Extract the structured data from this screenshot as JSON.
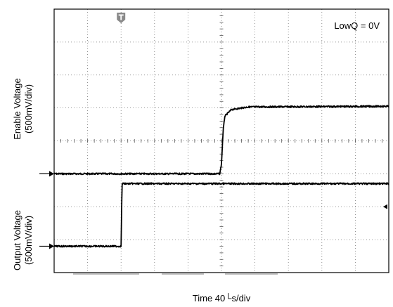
{
  "chart_data": {
    "type": "line",
    "annotation": "LowQ = 0V",
    "xlabel": "Time 40└s/div",
    "x_divisions": 10,
    "y_divisions": 8,
    "series": [
      {
        "name": "Enable Voltage",
        "label_lines": [
          "Enable Voltage",
          "(500mV/div)"
        ],
        "ground_div": 3,
        "points": [
          [
            0,
            3.0
          ],
          [
            4.95,
            3.0
          ],
          [
            5.0,
            3.3
          ],
          [
            5.05,
            4.3
          ],
          [
            5.1,
            4.75
          ],
          [
            5.3,
            4.95
          ],
          [
            5.8,
            5.03
          ],
          [
            10,
            5.05
          ]
        ]
      },
      {
        "name": "Output Voltage",
        "label_lines": [
          "Output Voltage",
          "(500mV/div)"
        ],
        "ground_div": 0.8,
        "points": [
          [
            0,
            0.8
          ],
          [
            2.0,
            0.8
          ],
          [
            2.03,
            2.7
          ],
          [
            10,
            2.7
          ]
        ]
      }
    ],
    "markers": {
      "trigger_position_div": 2.0,
      "trigger_icon": "trigger-t-icon",
      "trigger_level_icon": "trigger-level-arrow-icon",
      "trigger_level_div": 2.0
    },
    "grid": true
  }
}
